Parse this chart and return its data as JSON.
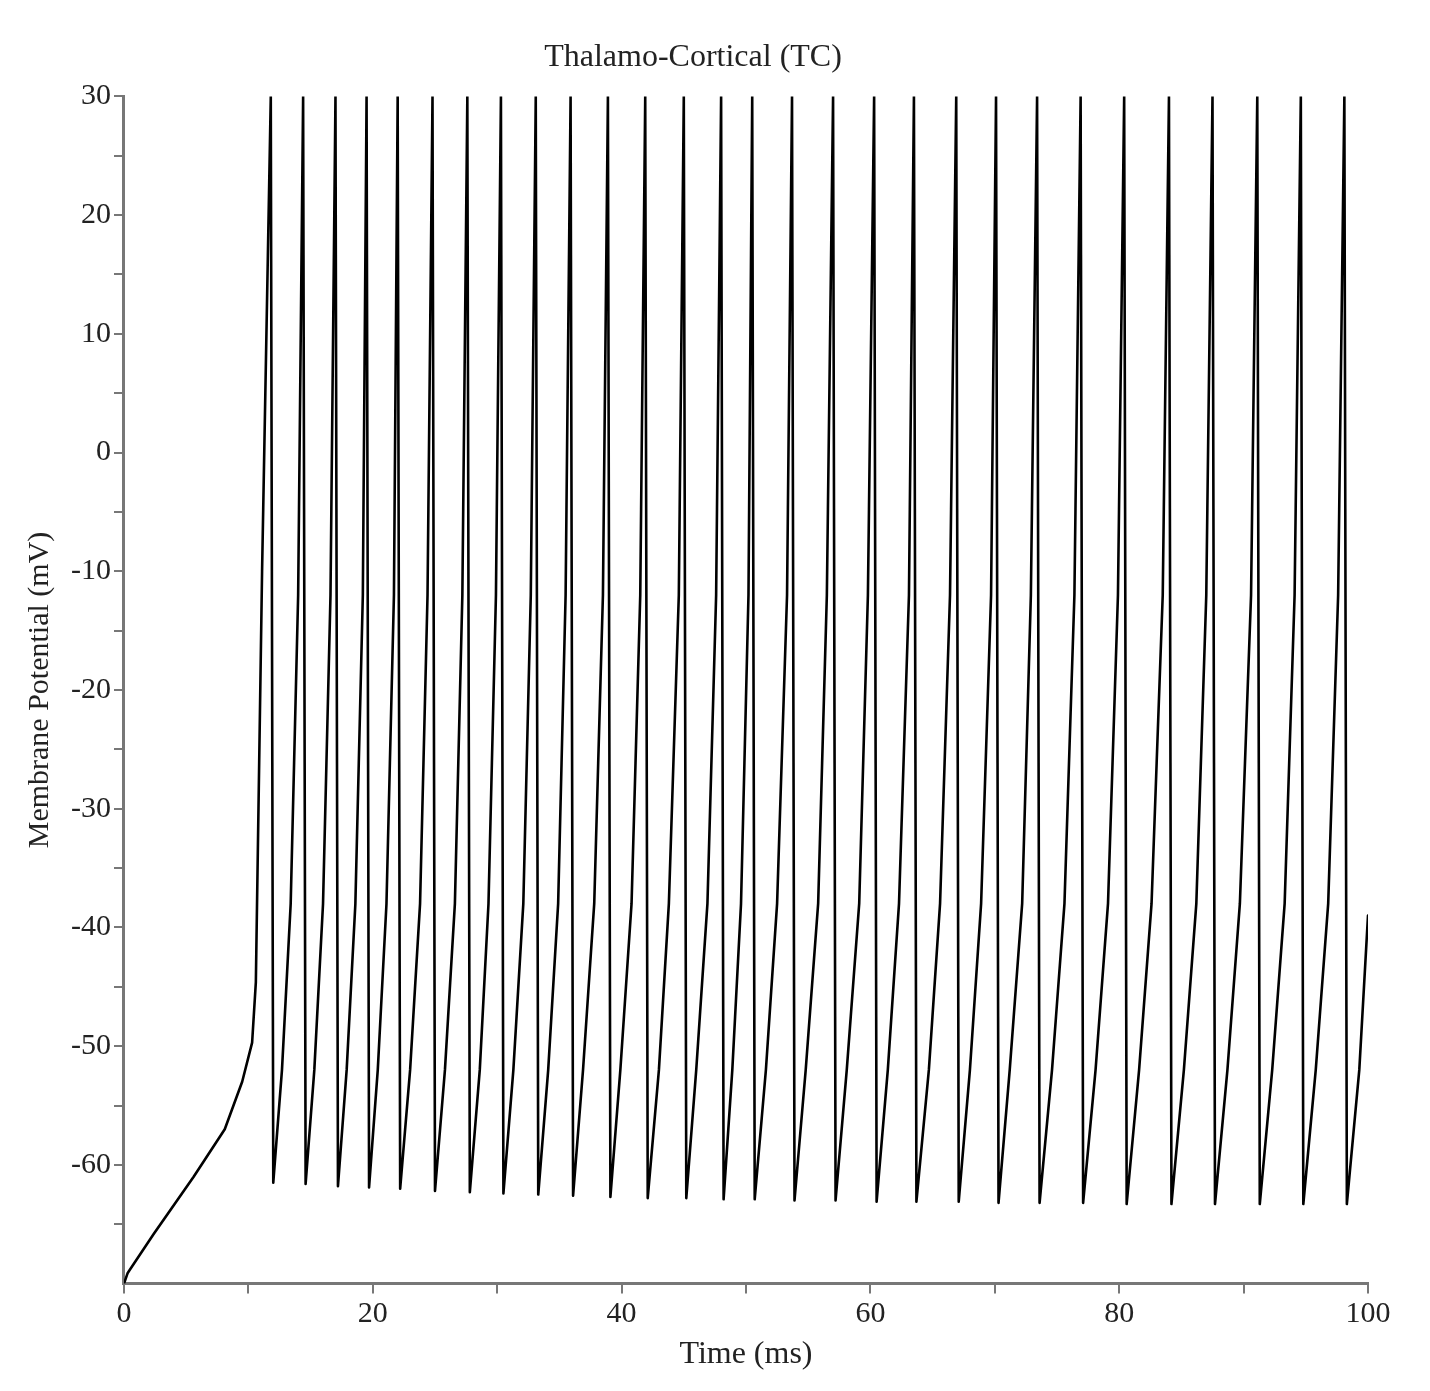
{
  "chart_data": {
    "type": "line",
    "title": "Thalamo-Cortical (TC)",
    "xlabel": "Time (ms)",
    "ylabel": "Membrane Potential (mV)",
    "xlim": [
      0,
      100
    ],
    "ylim": [
      -70,
      30
    ],
    "xticks": [
      0,
      {
        "value": 10,
        "label": null
      },
      20,
      {
        "value": 30,
        "label": null
      },
      40,
      {
        "value": 50,
        "label": null
      },
      60,
      {
        "value": 70,
        "label": null
      },
      80,
      {
        "value": 90,
        "label": null
      },
      100
    ],
    "yticks": [
      {
        "value": -65,
        "label": null
      },
      -60,
      {
        "value": -55,
        "label": null
      },
      -50,
      {
        "value": -45,
        "label": null
      },
      -40,
      {
        "value": -35,
        "label": null
      },
      -30,
      {
        "value": -25,
        "label": null
      },
      -20,
      {
        "value": -15,
        "label": null
      },
      -10,
      {
        "value": -5,
        "label": null
      },
      0,
      {
        "value": 5,
        "label": null
      },
      10,
      {
        "value": 15,
        "label": null
      },
      20,
      {
        "value": 25,
        "label": null
      },
      30
    ],
    "grid": false,
    "legend": false,
    "marker": "none",
    "line_style": "solid",
    "series": [
      {
        "color": "#000000",
        "x": [
          0,
          0.3,
          2.4,
          5.6,
          8.1,
          9.5,
          10.3,
          10.6,
          11.1,
          11.8,
          12.0,
          12.7,
          13.4,
          14.0,
          14.4,
          14.6,
          15.3,
          16.0,
          16.6,
          17.0,
          17.2,
          17.9,
          18.6,
          19.2,
          19.5,
          19.7,
          20.4,
          21.1,
          21.7,
          22.0,
          22.2,
          23.0,
          23.8,
          24.4,
          24.8,
          25.0,
          25.8,
          26.6,
          27.2,
          27.6,
          27.8,
          28.6,
          29.3,
          29.9,
          30.3,
          30.5,
          31.3,
          32.1,
          32.7,
          33.1,
          33.3,
          34.1,
          34.9,
          35.5,
          35.9,
          36.1,
          36.9,
          37.8,
          38.5,
          38.9,
          39.1,
          39.9,
          40.8,
          41.5,
          41.9,
          42.1,
          43.0,
          43.8,
          44.6,
          45.0,
          45.2,
          46.0,
          46.9,
          47.6,
          48.0,
          48.2,
          48.9,
          49.6,
          50.2,
          50.5,
          50.7,
          51.6,
          52.5,
          53.3,
          53.7,
          53.9,
          54.8,
          55.8,
          56.5,
          57.0,
          57.2,
          58.1,
          59.1,
          59.8,
          60.3,
          60.5,
          61.4,
          62.3,
          63.1,
          63.5,
          63.7,
          64.7,
          65.6,
          66.4,
          66.9,
          67.1,
          68.0,
          68.9,
          69.7,
          70.1,
          70.3,
          71.2,
          72.2,
          72.9,
          73.4,
          73.6,
          74.6,
          75.6,
          76.4,
          76.9,
          77.1,
          78.1,
          79.1,
          79.9,
          80.4,
          80.6,
          81.6,
          82.6,
          83.5,
          84.0,
          84.2,
          85.2,
          86.2,
          87.0,
          87.5,
          87.7,
          88.7,
          89.7,
          90.6,
          91.1,
          91.3,
          92.3,
          93.3,
          94.1,
          94.6,
          94.8,
          95.8,
          96.8,
          97.6,
          98.1,
          98.3,
          99.3,
          100
        ],
        "values": [
          -70,
          -69.1,
          -65.8,
          -61,
          -57,
          -53,
          -49.7,
          -44.6,
          -10,
          30,
          -61.5,
          -52,
          -38,
          -12,
          30,
          -61.6,
          -52,
          -38,
          -12,
          30,
          -61.8,
          -52,
          -38,
          -12,
          30,
          -61.9,
          -52,
          -38,
          -12,
          30,
          -62.0,
          -52,
          -38,
          -12,
          30,
          -62.2,
          -52,
          -38,
          -12,
          30,
          -62.3,
          -52,
          -38,
          -12,
          30,
          -62.4,
          -52,
          -38,
          -12,
          30,
          -62.5,
          -52,
          -38,
          -12,
          30,
          -62.6,
          -52,
          -38,
          -12,
          30,
          -62.7,
          -52,
          -38,
          -12,
          30,
          -62.8,
          -52,
          -38,
          -12,
          30,
          -62.8,
          -52,
          -38,
          -12,
          30,
          -62.9,
          -52,
          -38,
          -12,
          30,
          -62.9,
          -52,
          -38,
          -12,
          30,
          -63.0,
          -52,
          -38,
          -12,
          30,
          -63.0,
          -52,
          -38,
          -12,
          30,
          -63.1,
          -52,
          -38,
          -12,
          30,
          -63.1,
          -52,
          -38,
          -12,
          30,
          -63.1,
          -52,
          -38,
          -12,
          30,
          -63.2,
          -52,
          -38,
          -12,
          30,
          -63.2,
          -52,
          -38,
          -12,
          30,
          -63.2,
          -52,
          -38,
          -12,
          30,
          -63.3,
          -52,
          -38,
          -12,
          30,
          -63.3,
          -52,
          -38,
          -12,
          30,
          -63.3,
          -52,
          -38,
          -12,
          30,
          -63.3,
          -52,
          -38,
          -12,
          30,
          -63.3,
          -52,
          -38,
          -12,
          30,
          -63.3,
          -52,
          -39
        ]
      }
    ]
  }
}
